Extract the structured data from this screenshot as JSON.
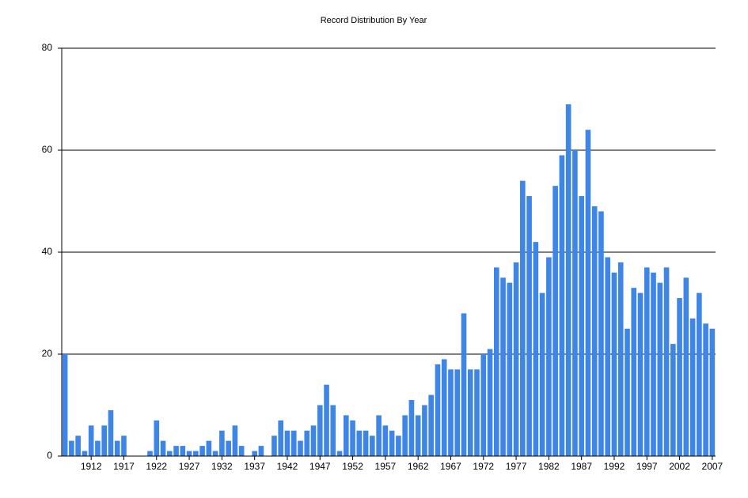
{
  "chart_data": {
    "type": "bar",
    "title": "Record Distribution By Year",
    "categories": [
      null,
      null,
      null,
      null,
      "1912",
      null,
      null,
      null,
      null,
      "1917",
      null,
      null,
      null,
      null,
      "1922",
      null,
      null,
      null,
      null,
      "1927",
      null,
      null,
      null,
      null,
      "1932",
      null,
      null,
      null,
      null,
      "1937",
      null,
      null,
      null,
      null,
      "1942",
      null,
      null,
      null,
      null,
      "1947",
      null,
      null,
      null,
      null,
      "1952",
      null,
      null,
      null,
      null,
      "1957",
      null,
      null,
      null,
      null,
      "1962",
      null,
      null,
      null,
      null,
      "1967",
      null,
      null,
      null,
      null,
      "1972",
      null,
      null,
      null,
      null,
      "1977",
      null,
      null,
      null,
      null,
      "1982",
      null,
      null,
      null,
      null,
      "1987",
      null,
      null,
      null,
      null,
      "1992",
      null,
      null,
      null,
      null,
      "1997",
      null,
      null,
      null,
      null,
      "2002",
      null,
      null,
      null,
      null,
      "2007"
    ],
    "values": [
      20,
      3,
      4,
      1,
      6,
      3,
      6,
      9,
      3,
      4,
      0,
      0,
      0,
      1,
      7,
      3,
      1,
      2,
      2,
      1,
      1,
      2,
      3,
      1,
      5,
      3,
      6,
      2,
      0,
      1,
      2,
      0,
      4,
      7,
      5,
      5,
      3,
      5,
      6,
      10,
      14,
      10,
      1,
      8,
      7,
      5,
      5,
      4,
      8,
      6,
      5,
      4,
      8,
      11,
      8,
      10,
      12,
      18,
      19,
      17,
      17,
      28,
      17,
      17,
      20,
      21,
      37,
      35,
      34,
      38,
      54,
      51,
      42,
      32,
      39,
      53,
      59,
      69,
      60,
      51,
      64,
      49,
      48,
      39,
      36,
      38,
      25,
      33,
      32,
      37,
      36,
      34,
      37,
      22,
      31,
      35,
      27,
      32,
      26,
      25
    ],
    "color": "#3d85e6",
    "ylim": [
      0,
      80
    ],
    "yticks": [
      0,
      20,
      40,
      60,
      80
    ],
    "grid": true
  }
}
